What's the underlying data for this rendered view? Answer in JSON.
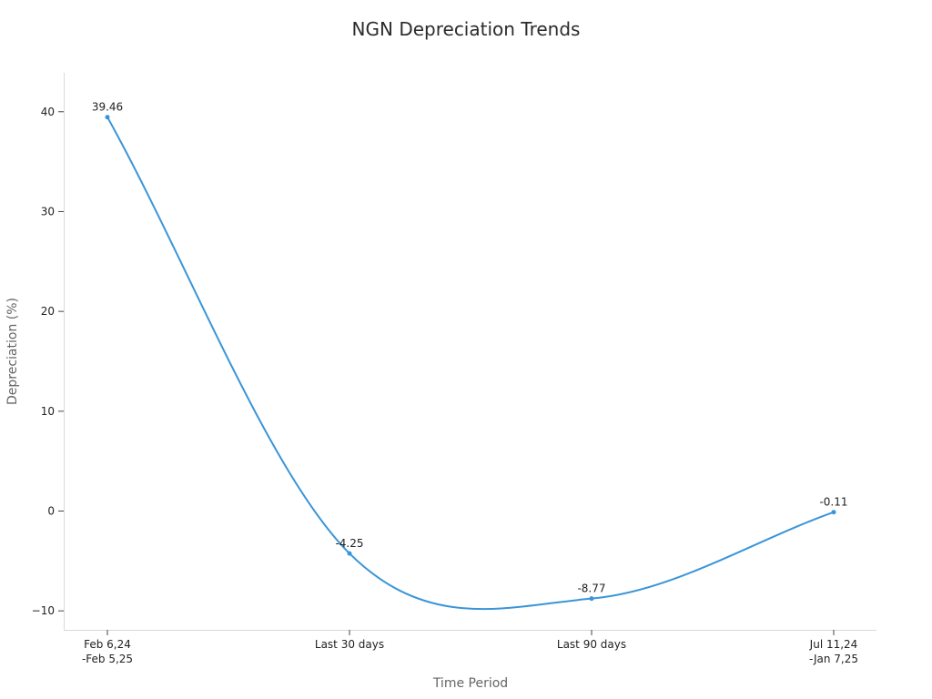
{
  "chart_data": {
    "type": "line",
    "title": "NGN Depreciation Trends",
    "xlabel": "Time Period",
    "ylabel": "Depreciation (%)",
    "categories": [
      [
        "Feb 6,24",
        "-Feb 5,25"
      ],
      [
        "Last 30 days"
      ],
      [
        "Last 90 days"
      ],
      [
        "Jul 11,24",
        "-Jan 7,25"
      ]
    ],
    "values": [
      39.46,
      -4.25,
      -8.77,
      -0.11
    ],
    "data_labels": [
      "39.46",
      "-4.25",
      "-8.77",
      "-0.11"
    ],
    "y_ticks": [
      40,
      30,
      20,
      10,
      0,
      -10
    ],
    "y_tick_labels": [
      "40",
      "30",
      "20",
      "10",
      "0",
      "−10"
    ],
    "ylim": [
      -11.9,
      43.9
    ],
    "smooth": true,
    "grid": false,
    "line_color": "#3a95d8"
  }
}
